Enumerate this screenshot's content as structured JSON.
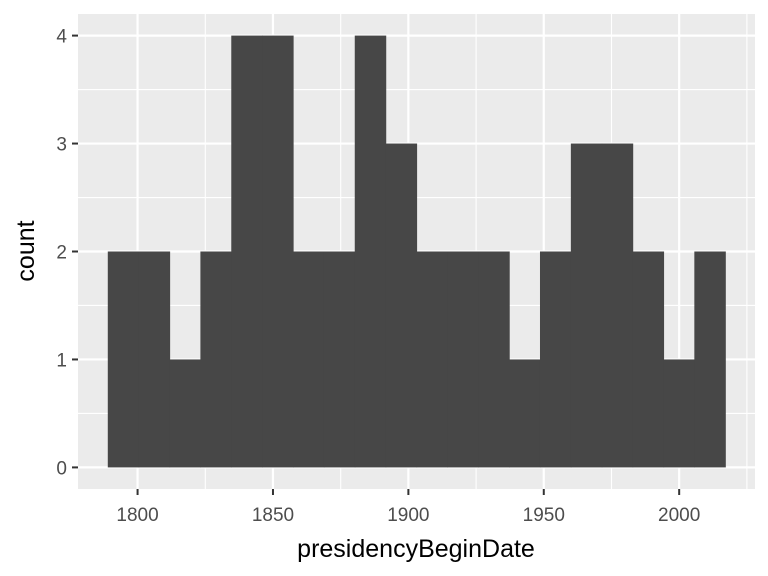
{
  "chart_data": {
    "type": "bar",
    "subtype": "histogram",
    "xlabel": "presidencyBeginDate",
    "ylabel": "count",
    "xlim": [
      1778,
      2028
    ],
    "ylim": [
      -0.2,
      4.2
    ],
    "x_ticks": [
      1800,
      1850,
      1900,
      1950,
      2000
    ],
    "y_ticks": [
      0,
      1,
      2,
      3,
      4
    ],
    "grid": true,
    "bin_width": 11.4,
    "bins": [
      {
        "x_start": 1789.0,
        "x_end": 1800.4,
        "count": 2
      },
      {
        "x_start": 1800.4,
        "x_end": 1811.8,
        "count": 2
      },
      {
        "x_start": 1811.8,
        "x_end": 1823.2,
        "count": 1
      },
      {
        "x_start": 1823.2,
        "x_end": 1834.6,
        "count": 2
      },
      {
        "x_start": 1834.6,
        "x_end": 1846.0,
        "count": 4
      },
      {
        "x_start": 1846.0,
        "x_end": 1857.4,
        "count": 4
      },
      {
        "x_start": 1857.4,
        "x_end": 1868.8,
        "count": 2
      },
      {
        "x_start": 1868.8,
        "x_end": 1880.2,
        "count": 2
      },
      {
        "x_start": 1880.2,
        "x_end": 1891.6,
        "count": 4
      },
      {
        "x_start": 1891.6,
        "x_end": 1903.0,
        "count": 3
      },
      {
        "x_start": 1903.0,
        "x_end": 1914.4,
        "count": 2
      },
      {
        "x_start": 1914.4,
        "x_end": 1925.8,
        "count": 2
      },
      {
        "x_start": 1925.8,
        "x_end": 1937.2,
        "count": 2
      },
      {
        "x_start": 1937.2,
        "x_end": 1948.6,
        "count": 1
      },
      {
        "x_start": 1948.6,
        "x_end": 1960.0,
        "count": 2
      },
      {
        "x_start": 1960.0,
        "x_end": 1971.4,
        "count": 3
      },
      {
        "x_start": 1971.4,
        "x_end": 1982.8,
        "count": 3
      },
      {
        "x_start": 1982.8,
        "x_end": 1994.2,
        "count": 2
      },
      {
        "x_start": 1994.2,
        "x_end": 2005.6,
        "count": 1
      },
      {
        "x_start": 2005.6,
        "x_end": 2017.0,
        "count": 2
      }
    ],
    "colors": {
      "panel_background": "#ebebeb",
      "grid_major": "#ffffff",
      "bar_fill": "#474747",
      "tick_label": "#4d4d4d",
      "axis_title": "#000000"
    }
  }
}
